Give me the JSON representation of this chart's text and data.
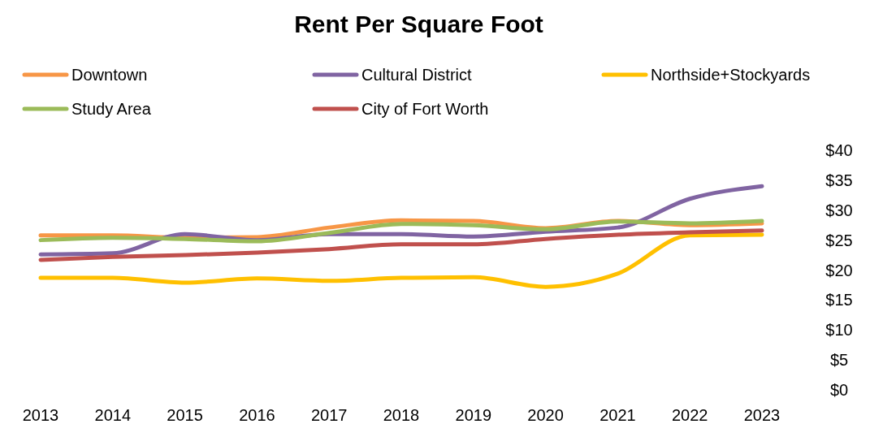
{
  "chart_data": {
    "type": "line",
    "title": "Rent Per Square Foot",
    "categories": [
      "2013",
      "2014",
      "2015",
      "2016",
      "2017",
      "2018",
      "2019",
      "2020",
      "2021",
      "2022",
      "2023"
    ],
    "series": [
      {
        "name": "Downtown",
        "color": "#f79646",
        "values": [
          25.8,
          25.8,
          25.4,
          25.5,
          27.1,
          28.3,
          28.2,
          27,
          28.2,
          27.5,
          27.8
        ]
      },
      {
        "name": "Cultural District",
        "color": "#8064a2",
        "values": [
          22.6,
          22.8,
          26,
          25,
          26,
          26,
          25.6,
          26.4,
          27.1,
          31.9,
          34
        ]
      },
      {
        "name": "Northside+Stockyards",
        "color": "#ffc000",
        "values": [
          18.7,
          18.7,
          17.9,
          18.6,
          18.2,
          18.7,
          18.8,
          17.2,
          19.4,
          25.8,
          25.9
        ]
      },
      {
        "name": "Study Area",
        "color": "#9bbb59",
        "values": [
          25,
          25.4,
          25.2,
          24.8,
          26.2,
          27.7,
          27.5,
          26.8,
          28.1,
          27.8,
          28.2
        ]
      },
      {
        "name": "City of Fort Worth",
        "color": "#c0504d",
        "values": [
          21.7,
          22.2,
          22.5,
          22.9,
          23.5,
          24.3,
          24.3,
          25.2,
          25.9,
          26.3,
          26.6
        ]
      }
    ],
    "ylim": [
      0,
      40
    ],
    "yticks": [
      {
        "value": 0,
        "label": "$0"
      },
      {
        "value": 5,
        "label": "$5"
      },
      {
        "value": 10,
        "label": "$10"
      },
      {
        "value": 15,
        "label": "$15"
      },
      {
        "value": 20,
        "label": "$20"
      },
      {
        "value": 25,
        "label": "$25"
      },
      {
        "value": 30,
        "label": "$30"
      },
      {
        "value": 35,
        "label": "$35"
      },
      {
        "value": 40,
        "label": "$40"
      }
    ],
    "grid": false,
    "legend": "top",
    "marker": "none",
    "line_style": "solid"
  }
}
